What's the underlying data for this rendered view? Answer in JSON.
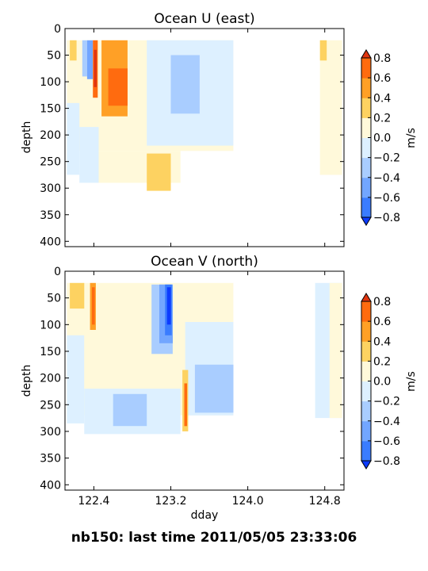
{
  "footer": "nb150: last time 2011/05/05 23:33:06",
  "colorbar": {
    "label": "m/s",
    "levels": [
      -0.8,
      -0.6,
      -0.4,
      -0.2,
      0.0,
      0.2,
      0.4,
      0.6,
      0.8
    ],
    "tick_labels": [
      "−0.8",
      "−0.6",
      "−0.4",
      "−0.2",
      "0.0",
      "0.2",
      "0.4",
      "0.6",
      "0.8"
    ],
    "colors": [
      "#0c3bff",
      "#3a7cff",
      "#72a6ff",
      "#a9cdff",
      "#ddf0ff",
      "#fff9da",
      "#fdd261",
      "#ffa026",
      "#ff6b0f",
      "#e03510"
    ]
  },
  "chart_data": [
    {
      "type": "contourf",
      "title": "Ocean U (east)",
      "xlabel": "",
      "ylabel": "depth",
      "xlim": [
        122.1,
        125.0
      ],
      "ylim": [
        410,
        0
      ],
      "x_ticks": [
        122.4,
        123.2,
        124.0,
        124.8
      ],
      "x_tick_labels": [
        "",
        "",
        "",
        ""
      ],
      "y_ticks": [
        0,
        50,
        100,
        150,
        200,
        250,
        300,
        350,
        400
      ],
      "y_tick_labels": [
        "0",
        "50",
        "100",
        "150",
        "200",
        "250",
        "300",
        "350",
        "400"
      ],
      "colorbar_label": "m/s",
      "regions": [
        {
          "x": [
            122.12,
            123.85
          ],
          "depth": [
            22,
            230
          ],
          "value": 0.1
        },
        {
          "x": [
            122.45,
            123.3
          ],
          "depth": [
            230,
            290
          ],
          "value": 0.1
        },
        {
          "x": [
            122.12,
            122.25
          ],
          "depth": [
            140,
            275
          ],
          "value": -0.1
        },
        {
          "x": [
            122.25,
            122.45
          ],
          "depth": [
            185,
            290
          ],
          "value": -0.1
        },
        {
          "x": [
            122.95,
            123.85
          ],
          "depth": [
            22,
            220
          ],
          "value": -0.1
        },
        {
          "x": [
            123.2,
            123.5
          ],
          "depth": [
            50,
            160
          ],
          "value": -0.3
        },
        {
          "x": [
            122.15,
            122.22
          ],
          "depth": [
            22,
            60
          ],
          "value": 0.3
        },
        {
          "x": [
            122.28,
            122.33
          ],
          "depth": [
            22,
            90
          ],
          "value": -0.3
        },
        {
          "x": [
            122.33,
            122.39
          ],
          "depth": [
            22,
            95
          ],
          "value": -0.5
        },
        {
          "x": [
            122.48,
            122.75
          ],
          "depth": [
            22,
            165
          ],
          "value": 0.5
        },
        {
          "x": [
            122.55,
            122.75
          ],
          "depth": [
            75,
            145
          ],
          "value": 0.7
        },
        {
          "x": [
            122.39,
            122.44
          ],
          "depth": [
            22,
            130
          ],
          "value": 0.7
        },
        {
          "x": [
            122.4,
            122.43
          ],
          "depth": [
            40,
            110
          ],
          "value": 0.85
        },
        {
          "x": [
            122.95,
            123.2
          ],
          "depth": [
            235,
            305
          ],
          "value": 0.3
        },
        {
          "x": [
            124.75,
            124.98
          ],
          "depth": [
            22,
            275
          ],
          "value": 0.1
        },
        {
          "x": [
            124.75,
            124.82
          ],
          "depth": [
            22,
            60
          ],
          "value": 0.3
        }
      ]
    },
    {
      "type": "contourf",
      "title": "Ocean V (north)",
      "xlabel": "dday",
      "ylabel": "depth",
      "xlim": [
        122.1,
        125.0
      ],
      "ylim": [
        410,
        0
      ],
      "x_ticks": [
        122.4,
        123.2,
        124.0,
        124.8
      ],
      "x_tick_labels": [
        "122.4",
        "123.2",
        "124.0",
        "124.8"
      ],
      "y_ticks": [
        0,
        50,
        100,
        150,
        200,
        250,
        300,
        350,
        400
      ],
      "y_tick_labels": [
        "0",
        "50",
        "100",
        "150",
        "200",
        "250",
        "300",
        "350",
        "400"
      ],
      "colorbar_label": "m/s",
      "regions": [
        {
          "x": [
            122.12,
            123.85
          ],
          "depth": [
            22,
            270
          ],
          "value": 0.1
        },
        {
          "x": [
            122.12,
            122.3
          ],
          "depth": [
            120,
            285
          ],
          "value": -0.1
        },
        {
          "x": [
            122.3,
            123.3
          ],
          "depth": [
            220,
            305
          ],
          "value": -0.1
        },
        {
          "x": [
            123.35,
            123.85
          ],
          "depth": [
            95,
            270
          ],
          "value": -0.1
        },
        {
          "x": [
            122.6,
            122.95
          ],
          "depth": [
            230,
            290
          ],
          "value": -0.3
        },
        {
          "x": [
            123.45,
            123.85
          ],
          "depth": [
            175,
            265
          ],
          "value": -0.3
        },
        {
          "x": [
            123.0,
            123.22
          ],
          "depth": [
            25,
            155
          ],
          "value": -0.3
        },
        {
          "x": [
            123.08,
            123.22
          ],
          "depth": [
            25,
            135
          ],
          "value": -0.5
        },
        {
          "x": [
            123.14,
            123.21
          ],
          "depth": [
            25,
            120
          ],
          "value": -0.7
        },
        {
          "x": [
            123.16,
            123.2
          ],
          "depth": [
            30,
            100
          ],
          "value": -0.85
        },
        {
          "x": [
            122.15,
            122.3
          ],
          "depth": [
            22,
            70
          ],
          "value": 0.3
        },
        {
          "x": [
            122.36,
            122.42
          ],
          "depth": [
            22,
            110
          ],
          "value": 0.5
        },
        {
          "x": [
            122.38,
            122.41
          ],
          "depth": [
            30,
            100
          ],
          "value": 0.7
        },
        {
          "x": [
            123.32,
            123.38
          ],
          "depth": [
            185,
            300
          ],
          "value": 0.3
        },
        {
          "x": [
            123.34,
            123.37
          ],
          "depth": [
            210,
            290
          ],
          "value": 0.7
        },
        {
          "x": [
            124.7,
            124.98
          ],
          "depth": [
            22,
            275
          ],
          "value": -0.1
        },
        {
          "x": [
            124.85,
            124.98
          ],
          "depth": [
            22,
            275
          ],
          "value": 0.1
        }
      ]
    }
  ]
}
